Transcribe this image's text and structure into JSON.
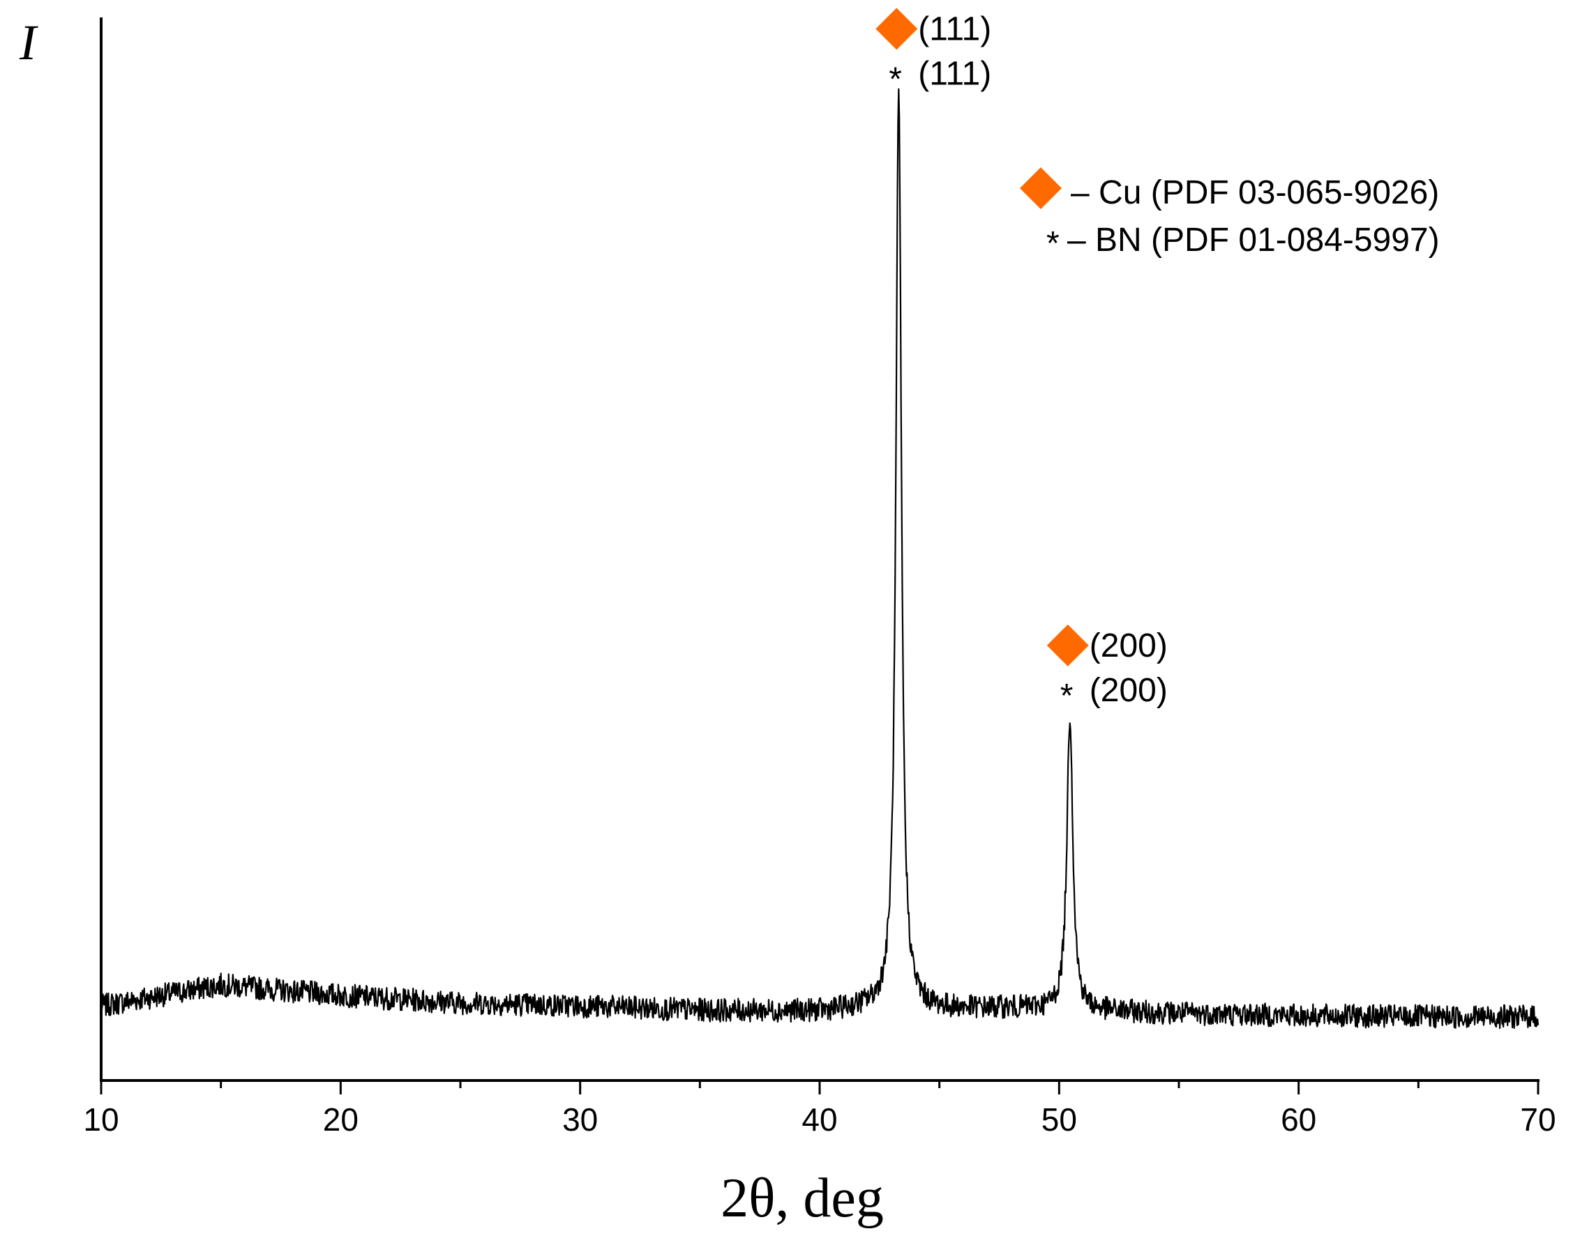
{
  "chart_data": {
    "type": "line",
    "xlabel": "2θ, deg",
    "ylabel": "I",
    "xlim": [
      10,
      70
    ],
    "ylim": [
      0,
      100
    ],
    "x_ticks": [
      "10",
      "20",
      "30",
      "40",
      "50",
      "60",
      "70"
    ],
    "grid": false,
    "series": [
      {
        "line_color": "#000000",
        "baseline": [
          [
            10,
            7.0
          ],
          [
            15,
            9.0
          ],
          [
            20,
            8.0
          ],
          [
            25,
            7.3
          ],
          [
            30,
            7.0
          ],
          [
            35,
            6.6
          ],
          [
            40,
            6.5
          ],
          [
            42,
            6.8
          ],
          [
            45,
            6.7
          ],
          [
            48,
            6.8
          ],
          [
            52,
            6.5
          ],
          [
            55,
            6.3
          ],
          [
            60,
            6.1
          ],
          [
            65,
            6.0
          ],
          [
            70,
            6.0
          ]
        ],
        "peaks": [
          {
            "x": 43.3,
            "height": 92.5,
            "fwhm": 0.28
          },
          {
            "x": 50.45,
            "height": 34.5,
            "fwhm": 0.3
          }
        ]
      }
    ],
    "peak_labels": [
      {
        "x": 43.3,
        "cu_label": "(111)",
        "bn_label": "(111)"
      },
      {
        "x": 50.45,
        "cu_label": "(200)",
        "bn_label": "(200)"
      }
    ],
    "legend": {
      "position": "top-right",
      "entries": [
        {
          "marker": "diamond",
          "text": "– Cu (PDF 03-065-9026)"
        },
        {
          "marker": "*",
          "text": "– BN (PDF 01-084-5997)"
        }
      ]
    },
    "colors": {
      "cu_marker": "#FF6A00",
      "line": "#000000",
      "axis": "#000000"
    }
  }
}
